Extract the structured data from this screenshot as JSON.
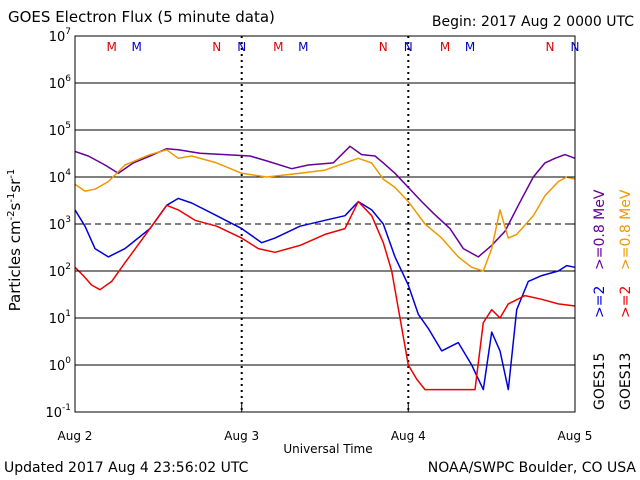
{
  "chart_data": {
    "type": "line",
    "title": "GOES Electron Flux (5 minute data)",
    "begin_label": "Begin: 2017 Aug 2 0000 UTC",
    "xlabel": "Universal Time",
    "ylabel_parts": [
      "Particles cm",
      "-2",
      "s",
      "-1",
      "sr",
      "-1"
    ],
    "x_ticks": [
      "Aug 2",
      "Aug 3",
      "Aug 4",
      "Aug 5"
    ],
    "xlim": [
      0,
      3
    ],
    "ylim": [
      0.1,
      10000000
    ],
    "y_scale": "log",
    "y_ticks": [
      {
        "mant": "10",
        "exp": "7"
      },
      {
        "mant": "10",
        "exp": "6"
      },
      {
        "mant": "10",
        "exp": "5"
      },
      {
        "mant": "10",
        "exp": "4"
      },
      {
        "mant": "10",
        "exp": "3"
      },
      {
        "mant": "10",
        "exp": "2"
      },
      {
        "mant": "10",
        "exp": "1"
      },
      {
        "mant": "10",
        "exp": "0"
      },
      {
        "mant": "10",
        "exp": "-1"
      }
    ],
    "threshold": 1000,
    "noon_markers": [
      {
        "label": "M",
        "x": 0.22,
        "color": "#dd0000"
      },
      {
        "label": "M",
        "x": 0.37,
        "color": "#0000cc"
      },
      {
        "label": "N",
        "x": 0.85,
        "color": "#dd0000"
      },
      {
        "label": "N",
        "x": 1.0,
        "color": "#0000cc"
      },
      {
        "label": "M",
        "x": 1.22,
        "color": "#dd0000"
      },
      {
        "label": "M",
        "x": 1.37,
        "color": "#0000cc"
      },
      {
        "label": "N",
        "x": 1.85,
        "color": "#dd0000"
      },
      {
        "label": "N",
        "x": 2.0,
        "color": "#0000cc"
      },
      {
        "label": "M",
        "x": 2.22,
        "color": "#dd0000"
      },
      {
        "label": "M",
        "x": 2.37,
        "color": "#0000cc"
      },
      {
        "label": "N",
        "x": 2.85,
        "color": "#dd0000"
      },
      {
        "label": "N",
        "x": 3.0,
        "color": "#0000cc"
      }
    ],
    "series": [
      {
        "name": ">=0.8 MeV",
        "color": "#660099",
        "x": [
          0,
          0.08,
          0.18,
          0.26,
          0.35,
          0.45,
          0.55,
          0.62,
          0.75,
          0.9,
          1.05,
          1.15,
          1.3,
          1.4,
          1.55,
          1.65,
          1.72,
          1.8,
          1.85,
          1.92,
          2.0,
          2.08,
          2.15,
          2.25,
          2.33,
          2.42,
          2.5,
          2.58,
          2.66,
          2.75,
          2.82,
          2.88,
          2.94,
          3.0
        ],
        "y": [
          35000,
          28000,
          18000,
          12000,
          20000,
          28000,
          40000,
          38000,
          32000,
          30000,
          28000,
          22000,
          15000,
          18000,
          20000,
          45000,
          30000,
          28000,
          20000,
          12000,
          6000,
          3000,
          1700,
          800,
          300,
          200,
          350,
          700,
          2500,
          10000,
          20000,
          25000,
          30000,
          25000
        ]
      },
      {
        "name": ">=0.8 MeV",
        "color": "#ee9900",
        "x": [
          0,
          0.06,
          0.12,
          0.2,
          0.3,
          0.45,
          0.55,
          0.62,
          0.7,
          0.85,
          1.0,
          1.15,
          1.25,
          1.35,
          1.5,
          1.62,
          1.7,
          1.78,
          1.85,
          1.92,
          2.0,
          2.1,
          2.2,
          2.3,
          2.38,
          2.45,
          2.5,
          2.55,
          2.6,
          2.65,
          2.75,
          2.82,
          2.9,
          2.95,
          3.0
        ],
        "y": [
          7000,
          5000,
          5500,
          8000,
          18000,
          30000,
          38000,
          25000,
          28000,
          20000,
          12000,
          10000,
          11000,
          12000,
          14000,
          20000,
          25000,
          20000,
          9000,
          6000,
          3000,
          1000,
          500,
          200,
          120,
          100,
          300,
          2000,
          500,
          600,
          1500,
          4000,
          8000,
          10000,
          9000
        ]
      },
      {
        "name": ">=2 MeV",
        "color": "#0000dd",
        "x": [
          0,
          0.06,
          0.12,
          0.2,
          0.3,
          0.45,
          0.55,
          0.62,
          0.7,
          0.85,
          1.0,
          1.12,
          1.2,
          1.35,
          1.5,
          1.62,
          1.7,
          1.78,
          1.85,
          1.92,
          2.0,
          2.06,
          2.12,
          2.2,
          2.3,
          2.38,
          2.45,
          2.5,
          2.55,
          2.6,
          2.65,
          2.72,
          2.8,
          2.9,
          2.95,
          3.0
        ],
        "y": [
          2000,
          900,
          300,
          200,
          300,
          800,
          2500,
          3500,
          2800,
          1500,
          800,
          400,
          500,
          900,
          1200,
          1500,
          3000,
          2000,
          1000,
          200,
          50,
          12,
          6,
          2,
          3,
          1,
          0.3,
          5,
          2,
          0.3,
          15,
          60,
          80,
          100,
          130,
          120
        ]
      },
      {
        "name": ">=2 MeV",
        "color": "#ee0000",
        "x": [
          0,
          0.05,
          0.1,
          0.15,
          0.22,
          0.3,
          0.45,
          0.55,
          0.62,
          0.72,
          0.85,
          1.0,
          1.1,
          1.2,
          1.35,
          1.5,
          1.62,
          1.7,
          1.78,
          1.85,
          1.9,
          1.95,
          2.0,
          2.05,
          2.1,
          2.2,
          2.3,
          2.4,
          2.45,
          2.5,
          2.55,
          2.6,
          2.7,
          2.8,
          2.9,
          3.0
        ],
        "y": [
          120,
          80,
          50,
          40,
          60,
          150,
          800,
          2500,
          2000,
          1200,
          900,
          500,
          300,
          250,
          350,
          600,
          800,
          3000,
          1500,
          400,
          100,
          10,
          1,
          0.5,
          0.3,
          0.3,
          0.3,
          0.3,
          8,
          15,
          10,
          20,
          30,
          25,
          20,
          18
        ]
      }
    ],
    "side_labels": {
      "goes_a": "GOES15",
      "goes_b": "GOES13",
      "ge08_a": ">=0.8 MeV",
      "ge08_b": ">=0.8 MeV",
      "ge2_a": ">=2",
      "ge2_b": ">=2",
      "color_ge08_a": "#660099",
      "color_ge08_b": "#ee9900",
      "color_ge2_a": "#0000dd",
      "color_ge2_b": "#ee0000"
    }
  },
  "footer": {
    "updated": "Updated 2017 Aug  4 23:56:02 UTC",
    "credit": "NOAA/SWPC Boulder, CO USA"
  }
}
